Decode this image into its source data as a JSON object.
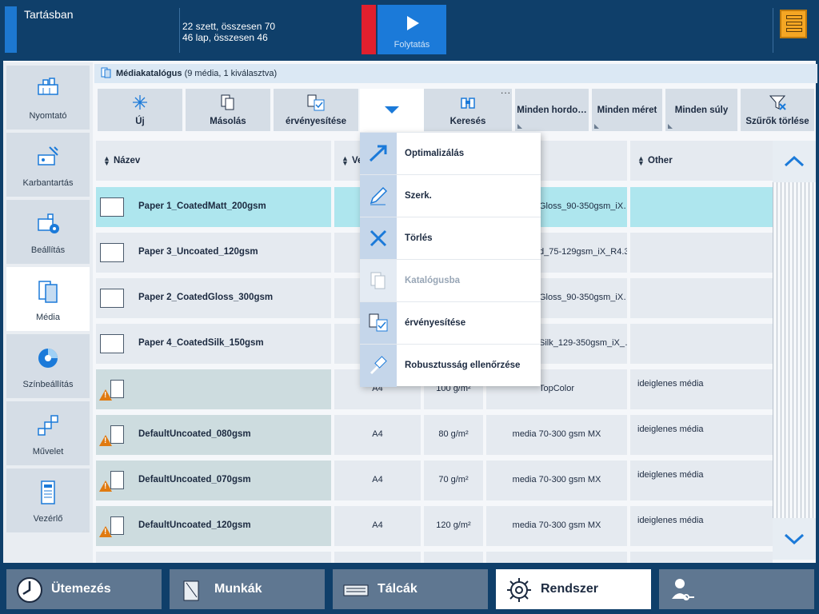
{
  "topbar": {
    "status": "Tartásban",
    "sheets": "22 szett, összesen 70",
    "pages": "46 lap, összesen 46",
    "continue_label": "Folytatás"
  },
  "nav": {
    "items": [
      {
        "label": "Nyomtató",
        "icon": "printer-icon"
      },
      {
        "label": "Karbantartás",
        "icon": "maintenance-icon"
      },
      {
        "label": "Beállítás",
        "icon": "setup-icon"
      },
      {
        "label": "Média",
        "icon": "media-icon"
      },
      {
        "label": "Színbeállítás",
        "icon": "color-icon"
      },
      {
        "label": "Művelet",
        "icon": "workflow-icon"
      },
      {
        "label": "Vezérlő",
        "icon": "controller-icon"
      }
    ],
    "active": "Média"
  },
  "catalog": {
    "title": "Médiakatalógus",
    "subtitle": "(9 média, 1 kiválasztva)"
  },
  "toolbar": {
    "new_label": "Új",
    "copy_label": "Másolás",
    "validate_label": "érvényesítése",
    "search_label": "Keresés",
    "more_label": "...",
    "filter_holders": "Minden hordo…",
    "filter_size": "Minden méret",
    "filter_weight": "Minden súly",
    "clear_filters": "Szűrők törlése"
  },
  "table": {
    "headers": {
      "name": "Název",
      "v": "Ve",
      "other": "Other"
    },
    "rows": [
      {
        "name": "Paper 1_CoatedMatt_200gsm",
        "size": "",
        "weight": "",
        "type": "Gloss_90-350gsm_iX…",
        "other": "",
        "selected": true
      },
      {
        "name": "Paper 3_Uncoated_120gsm",
        "size": "",
        "weight": "",
        "type": "d_75-129gsm_iX_R4.3",
        "other": ""
      },
      {
        "name": "Paper 2_CoatedGloss_300gsm",
        "size": "",
        "weight": "",
        "type": "Gloss_90-350gsm_iX…",
        "other": ""
      },
      {
        "name": "Paper 4_CoatedSilk_150gsm",
        "size": "",
        "weight": "",
        "type": "Silk_129-350gsm_iX_…",
        "other": ""
      },
      {
        "name": "",
        "size": "A4",
        "weight": "100 g/m²",
        "type": "TopColor",
        "other": "ideiglenes média"
      },
      {
        "name": "DefaultUncoated_080gsm",
        "size": "A4",
        "weight": "80 g/m²",
        "type": "media 70-300 gsm MX",
        "other": "ideiglenes média"
      },
      {
        "name": "DefaultUncoated_070gsm",
        "size": "A4",
        "weight": "70 g/m²",
        "type": "media 70-300 gsm MX",
        "other": "ideiglenes média"
      },
      {
        "name": "DefaultUncoated_120gsm",
        "size": "A4",
        "weight": "120 g/m²",
        "type": "media 70-300 gsm MX",
        "other": "ideiglenes média"
      }
    ]
  },
  "menu": {
    "items": [
      {
        "label": "Optimalizálás",
        "disabled": false
      },
      {
        "label": "Szerk.",
        "disabled": false
      },
      {
        "label": "Törlés",
        "disabled": false
      },
      {
        "label": "Katalógusba",
        "disabled": true
      },
      {
        "label": " érvényesítése",
        "disabled": false
      },
      {
        "label": "Robusztusság ellenőrzése",
        "disabled": false
      }
    ]
  },
  "bottom": {
    "schedule": "Ütemezés",
    "jobs": "Munkák",
    "trays": "Tálcák",
    "system": "Rendszer"
  },
  "colors": {
    "accent": "#1b7ad9",
    "selected_row": "#aee6ee",
    "stop": "#e0202e",
    "warning": "#e07a10"
  }
}
